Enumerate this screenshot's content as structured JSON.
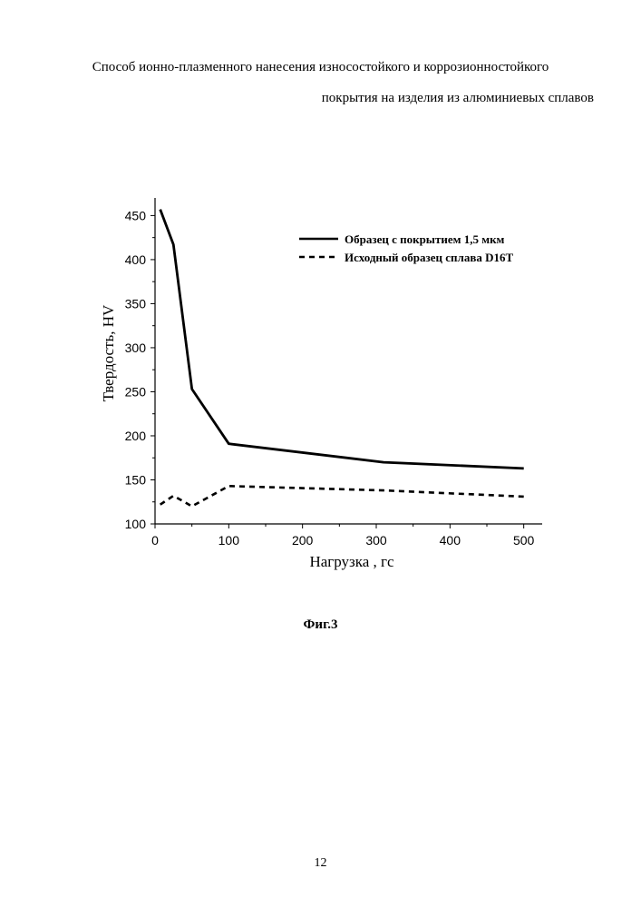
{
  "header": {
    "line1": "Способ ионно-плазменного нанесения износостойкого и коррозионностойкого",
    "line2": "покрытия на изделия из алюминиевых сплавов"
  },
  "figure": {
    "caption": "Фиг.3"
  },
  "page": {
    "number": "12"
  },
  "colors": {
    "ink": "#000000",
    "background": "#ffffff"
  },
  "chart_data": {
    "type": "line",
    "title": "",
    "xlabel": "Нагрузка , гс",
    "ylabel": "Твердость, HV",
    "xlim": [
      0,
      525
    ],
    "ylim": [
      100,
      470
    ],
    "xticks": [
      0,
      100,
      200,
      300,
      400,
      500
    ],
    "yticks": [
      100,
      150,
      200,
      250,
      300,
      350,
      400,
      450
    ],
    "legend_position": "top-right",
    "series": [
      {
        "name": "Образец с покрытием 1,5 мкм",
        "style": "solid",
        "x": [
          7,
          25,
          50,
          100,
          310,
          500
        ],
        "y": [
          457,
          417,
          253,
          191,
          170,
          163
        ]
      },
      {
        "name": "Исходный образец сплава D16T",
        "style": "dashed",
        "x": [
          7,
          25,
          50,
          100,
          310,
          500
        ],
        "y": [
          122,
          132,
          120,
          143,
          138,
          131
        ]
      }
    ]
  }
}
